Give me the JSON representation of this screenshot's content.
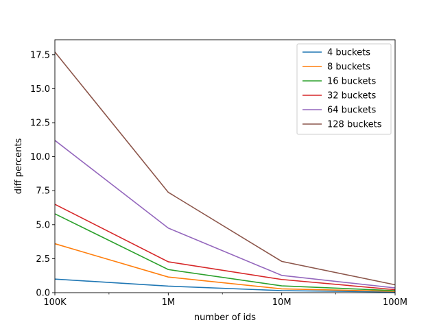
{
  "chart_data": {
    "type": "line",
    "title": "",
    "xlabel": "number of ids",
    "ylabel": "diff percents",
    "x_scale": "log",
    "categories": [
      "100K",
      "1M",
      "10M",
      "100M"
    ],
    "x": [
      100000,
      1000000,
      10000000,
      100000000
    ],
    "xlim": [
      100000,
      100000000
    ],
    "ylim": [
      0,
      18.6
    ],
    "yticks": [
      0,
      2.5,
      5,
      7.5,
      10,
      12.5,
      15,
      17.5
    ],
    "ytick_labels": [
      "0.0",
      "2.5",
      "5.0",
      "7.5",
      "10.0",
      "12.5",
      "15.0",
      "17.5"
    ],
    "grid": false,
    "legend_position": "top-right",
    "series": [
      {
        "name": "4 buckets",
        "color": "#1f77b4",
        "values": [
          1.0,
          0.48,
          0.15,
          0.05
        ]
      },
      {
        "name": "8 buckets",
        "color": "#ff7f0e",
        "values": [
          3.6,
          1.15,
          0.28,
          0.1
        ]
      },
      {
        "name": "16 buckets",
        "color": "#2ca02c",
        "values": [
          5.8,
          1.7,
          0.5,
          0.15
        ]
      },
      {
        "name": "32 buckets",
        "color": "#d62728",
        "values": [
          6.5,
          2.27,
          0.97,
          0.22
        ]
      },
      {
        "name": "64 buckets",
        "color": "#9467bd",
        "values": [
          11.2,
          4.75,
          1.27,
          0.35
        ]
      },
      {
        "name": "128 buckets",
        "color": "#8c564b",
        "values": [
          17.7,
          7.38,
          2.3,
          0.58
        ]
      }
    ]
  }
}
